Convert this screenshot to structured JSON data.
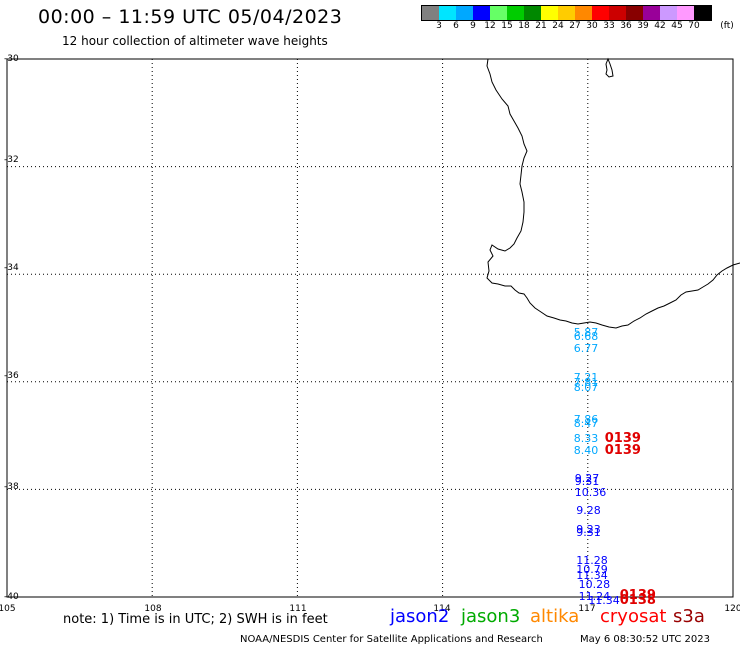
{
  "header": {
    "title": "00:00 – 11:59 UTC 05/04/2023",
    "subtitle": "12 hour collection of altimeter wave heights"
  },
  "scale": {
    "unit": "(ft)",
    "colors": [
      "#808080",
      "#00e5ff",
      "#00a8ff",
      "#0000ff",
      "#66ff66",
      "#00cc00",
      "#008800",
      "#ffff00",
      "#ffcc00",
      "#ff8800",
      "#ff0000",
      "#cc0000",
      "#880000",
      "#990099",
      "#cc99ff",
      "#ff99ff",
      "#000000"
    ],
    "labels": [
      "3",
      "6",
      "9",
      "12",
      "15",
      "18",
      "21",
      "24",
      "27",
      "30",
      "33",
      "36",
      "39",
      "42",
      "45",
      "70"
    ]
  },
  "axes": {
    "lat_labels": [
      "-30",
      "-32",
      "-34",
      "-36",
      "-38",
      "-40"
    ],
    "lon_labels": [
      "105",
      "108",
      "111",
      "114",
      "117",
      "120"
    ]
  },
  "observations": [
    {
      "text": "5.87",
      "color": "#00a8ff",
      "lon": 117.0,
      "lat": -35.08
    },
    {
      "text": "6.68",
      "color": "#00a8ff",
      "lon": 117.0,
      "lat": -35.15
    },
    {
      "text": "6.77",
      "color": "#00a8ff",
      "lon": 117.0,
      "lat": -35.38
    },
    {
      "text": "7.21",
      "color": "#00a8ff",
      "lon": 117.0,
      "lat": -35.92
    },
    {
      "text": "7.81",
      "color": "#00a8ff",
      "lon": 117.0,
      "lat": -36.0
    },
    {
      "text": "8.07",
      "color": "#00a8ff",
      "lon": 117.0,
      "lat": -36.1
    },
    {
      "text": "7.86",
      "color": "#00a8ff",
      "lon": 117.0,
      "lat": -36.7
    },
    {
      "text": "8.47",
      "color": "#00a8ff",
      "lon": 117.0,
      "lat": -36.77
    },
    {
      "text": "8.33",
      "color": "#00a8ff",
      "lon": 117.0,
      "lat": -37.05
    },
    {
      "text": "8.40",
      "color": "#00a8ff",
      "lon": 117.0,
      "lat": -37.27
    },
    {
      "text": "9.27",
      "color": "#0000ff",
      "lon": 117.02,
      "lat": -37.78
    },
    {
      "text": "9.31",
      "color": "#0000ff",
      "lon": 117.02,
      "lat": -37.84
    },
    {
      "text": "10.36",
      "color": "#0000ff",
      "lon": 117.02,
      "lat": -38.04
    },
    {
      "text": "9.28",
      "color": "#0000ff",
      "lon": 117.05,
      "lat": -38.38
    },
    {
      "text": "9.23",
      "color": "#0000ff",
      "lon": 117.05,
      "lat": -38.73
    },
    {
      "text": "9.31",
      "color": "#0000ff",
      "lon": 117.05,
      "lat": -38.79
    },
    {
      "text": "11.28",
      "color": "#0000ff",
      "lon": 117.05,
      "lat": -39.32
    },
    {
      "text": "10.79",
      "color": "#0000ff",
      "lon": 117.05,
      "lat": -39.48
    },
    {
      "text": "11.34",
      "color": "#0000ff",
      "lon": 117.05,
      "lat": -39.6
    },
    {
      "text": "10.28",
      "color": "#0000ff",
      "lon": 117.1,
      "lat": -39.75
    },
    {
      "text": "11.24",
      "color": "#0000ff",
      "lon": 117.1,
      "lat": -39.98
    },
    {
      "text": "11.34",
      "color": "#0000ff",
      "lon": 117.3,
      "lat": -40.05
    }
  ],
  "passes": [
    {
      "text": "0139",
      "lon": 117.64,
      "lat": -37.05
    },
    {
      "text": "0139",
      "lon": 117.64,
      "lat": -37.27
    },
    {
      "text": "0139",
      "lon": 117.95,
      "lat": -39.97
    },
    {
      "text": "0138",
      "lon": 117.95,
      "lat": -40.05
    }
  ],
  "legend": {
    "note": "note: 1) Time is in UTC; 2) SWH is in feet",
    "satellites": [
      {
        "name": "jason2",
        "color": "#0000ff"
      },
      {
        "name": "jason3",
        "color": "#00aa00"
      },
      {
        "name": "altika",
        "color": "#ff8800"
      },
      {
        "name": "cryosat",
        "color": "#ff0000"
      },
      {
        "name": "s3a",
        "color": "#990000"
      }
    ]
  },
  "footer": {
    "credit": "NOAA/NESDIS Center for Satellite Applications and Research",
    "timestamp": "May  6 08:30:52 UTC 2023"
  }
}
